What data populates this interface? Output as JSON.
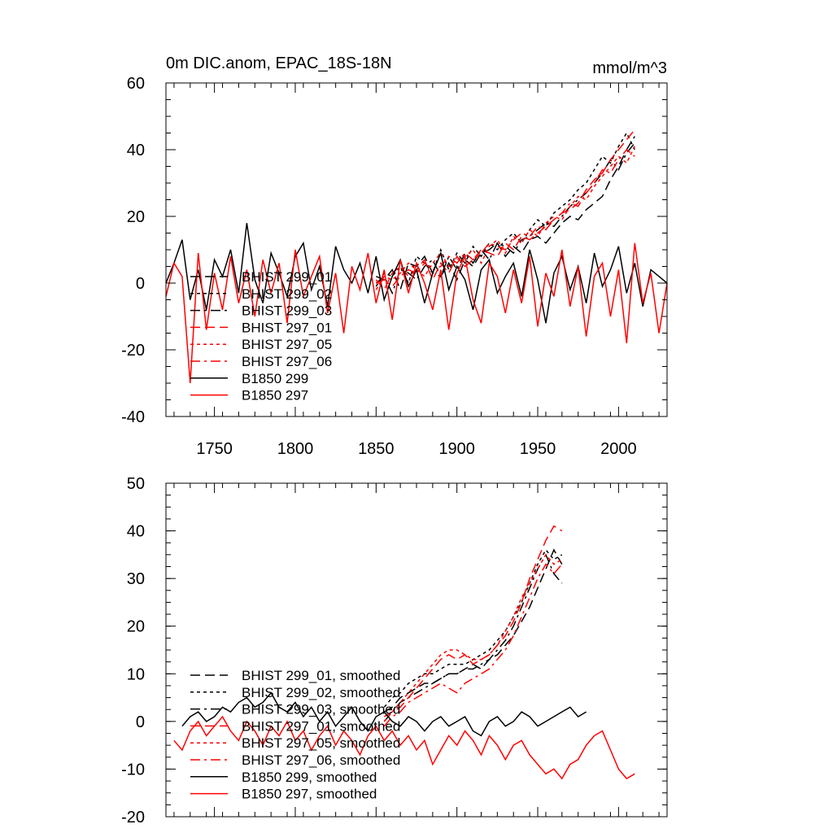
{
  "chart_data": [
    {
      "type": "line",
      "title": "0m DIC.anom, EPAC_18S-18N",
      "units": "mmol/m^3",
      "xlabel": "",
      "ylabel": "",
      "xlim": [
        1720,
        2030
      ],
      "ylim": [
        -40,
        60
      ],
      "x_ticks": [
        1750,
        1800,
        1850,
        1900,
        1950,
        2000
      ],
      "y_ticks": [
        -40,
        -20,
        0,
        20,
        40,
        60
      ],
      "grid": false,
      "legend_position": "lower-left",
      "series": [
        {
          "name": "BHIST 299_01",
          "color": "#000000",
          "dash": "long-dash",
          "x_start": 1850,
          "x_step": 5,
          "values": [
            2,
            1,
            4,
            -2,
            6,
            5,
            8,
            3,
            2,
            6,
            1,
            7,
            5,
            9,
            10,
            12,
            8,
            11,
            9,
            13,
            14,
            12,
            15,
            18,
            20,
            19,
            22,
            24,
            26,
            31,
            35,
            40,
            44
          ]
        },
        {
          "name": "BHIST 299_02",
          "color": "#000000",
          "dash": "short-dash",
          "x_start": 1850,
          "x_step": 5,
          "values": [
            -1,
            3,
            2,
            5,
            0,
            8,
            6,
            3,
            10,
            4,
            9,
            6,
            11,
            8,
            12,
            10,
            13,
            15,
            12,
            16,
            19,
            17,
            21,
            23,
            25,
            28,
            30,
            34,
            38,
            36,
            41,
            45,
            40
          ]
        },
        {
          "name": "BHIST 299_03",
          "color": "#000000",
          "dash": "dash-dot",
          "x_start": 1850,
          "x_step": 5,
          "values": [
            0,
            2,
            -3,
            4,
            3,
            1,
            5,
            7,
            2,
            8,
            4,
            9,
            6,
            10,
            7,
            12,
            11,
            9,
            13,
            14,
            16,
            18,
            17,
            20,
            23,
            25,
            27,
            30,
            33,
            37,
            34,
            39,
            42
          ]
        },
        {
          "name": "BHIST 297_01",
          "color": "#ff0000",
          "dash": "long-dash",
          "x_start": 1850,
          "x_step": 5,
          "values": [
            1,
            -2,
            3,
            5,
            2,
            4,
            7,
            1,
            6,
            3,
            8,
            5,
            7,
            10,
            9,
            8,
            12,
            10,
            14,
            13,
            15,
            17,
            19,
            21,
            22,
            24,
            28,
            31,
            33,
            37,
            40,
            43,
            46
          ]
        },
        {
          "name": "BHIST 297_05",
          "color": "#ff0000",
          "dash": "short-dash",
          "x_start": 1850,
          "x_step": 5,
          "values": [
            -2,
            2,
            1,
            3,
            6,
            4,
            2,
            6,
            9,
            5,
            7,
            8,
            10,
            6,
            11,
            13,
            9,
            14,
            12,
            16,
            14,
            18,
            20,
            19,
            23,
            26,
            25,
            29,
            32,
            35,
            38,
            36,
            41
          ]
        },
        {
          "name": "BHIST 297_06",
          "color": "#ff0000",
          "dash": "dash-dot",
          "x_start": 1850,
          "x_step": 5,
          "values": [
            0,
            1,
            -1,
            2,
            4,
            3,
            6,
            4,
            5,
            8,
            6,
            9,
            7,
            9,
            12,
            11,
            10,
            13,
            15,
            14,
            17,
            16,
            19,
            21,
            24,
            23,
            27,
            30,
            34,
            33,
            37,
            40,
            38
          ]
        },
        {
          "name": "B1850 299",
          "color": "#000000",
          "dash": "solid",
          "x_start": 1720,
          "x_step": 5,
          "values": [
            0,
            6,
            13,
            -5,
            4,
            -8,
            7,
            2,
            10,
            -3,
            18,
            1,
            -6,
            9,
            3,
            -4,
            8,
            12,
            -2,
            5,
            -7,
            11,
            4,
            0,
            6,
            -3,
            8,
            -5,
            2,
            7,
            -1,
            4,
            -6,
            3,
            9,
            -2,
            5,
            1,
            -8,
            4,
            7,
            -3,
            2,
            6,
            -4,
            10,
            1,
            -12,
            3,
            8,
            -2,
            5,
            -6,
            9,
            -1,
            4,
            11,
            -3,
            6,
            -7,
            4,
            2,
            0
          ]
        },
        {
          "name": "B1850 297",
          "color": "#ff0000",
          "dash": "solid",
          "x_start": 1720,
          "x_step": 5,
          "values": [
            -4,
            6,
            2,
            -30,
            9,
            -14,
            3,
            -8,
            8,
            -6,
            4,
            -10,
            7,
            -3,
            6,
            -12,
            10,
            -4,
            2,
            8,
            -9,
            3,
            -15,
            5,
            -2,
            9,
            -6,
            4,
            -11,
            7,
            -3,
            6,
            0,
            -8,
            4,
            -14,
            3,
            8,
            -5,
            -12,
            6,
            2,
            -9,
            4,
            -6,
            8,
            -13,
            3,
            -4,
            10,
            -7,
            5,
            -16,
            2,
            6,
            -10,
            4,
            -18,
            12,
            -6,
            3,
            -15,
            0
          ]
        }
      ]
    },
    {
      "type": "line",
      "title": "",
      "units": "",
      "xlabel": "",
      "ylabel": "",
      "xlim": [
        1720,
        2030
      ],
      "ylim": [
        -20,
        50
      ],
      "x_ticks": [
        1750,
        1800,
        1850,
        1900,
        1950,
        2000
      ],
      "y_ticks": [
        -20,
        -10,
        0,
        10,
        20,
        30,
        40,
        50
      ],
      "grid": false,
      "legend_position": "lower-left",
      "series": [
        {
          "name": "BHIST 299_01, smoothed",
          "color": "#000000",
          "dash": "long-dash",
          "x_start": 1855,
          "x_step": 5,
          "values": [
            2,
            3,
            5,
            6,
            7,
            8,
            8,
            9,
            10,
            10,
            11,
            12,
            11,
            13,
            14,
            16,
            18,
            21,
            24,
            28,
            32,
            36,
            33
          ]
        },
        {
          "name": "BHIST 299_02, smoothed",
          "color": "#000000",
          "dash": "short-dash",
          "x_start": 1855,
          "x_step": 5,
          "values": [
            3,
            5,
            6,
            8,
            9,
            10,
            10,
            11,
            12,
            12,
            12,
            13,
            14,
            15,
            17,
            19,
            22,
            25,
            29,
            33,
            36,
            34,
            35
          ]
        },
        {
          "name": "BHIST 299_03, smoothed",
          "color": "#000000",
          "dash": "dash-dot",
          "x_start": 1855,
          "x_step": 5,
          "values": [
            0,
            2,
            4,
            5,
            6,
            7,
            8,
            9,
            10,
            10,
            11,
            11,
            12,
            13,
            15,
            17,
            20,
            24,
            28,
            32,
            35,
            31,
            29
          ]
        },
        {
          "name": "BHIST 297_01, smoothed",
          "color": "#ff0000",
          "dash": "long-dash",
          "x_start": 1855,
          "x_step": 5,
          "values": [
            1,
            2,
            3,
            5,
            7,
            9,
            11,
            13,
            14,
            13,
            14,
            12,
            13,
            14,
            16,
            18,
            21,
            25,
            30,
            34,
            38,
            41,
            40
          ]
        },
        {
          "name": "BHIST 297_05, smoothed",
          "color": "#ff0000",
          "dash": "short-dash",
          "x_start": 1855,
          "x_step": 5,
          "values": [
            0,
            2,
            4,
            6,
            8,
            10,
            12,
            14,
            15,
            15,
            14,
            13,
            13,
            14,
            16,
            19,
            22,
            26,
            29,
            32,
            35,
            33,
            34
          ]
        },
        {
          "name": "BHIST 297_06, smoothed",
          "color": "#ff0000",
          "dash": "dash-dot",
          "x_start": 1855,
          "x_step": 5,
          "values": [
            -1,
            1,
            2,
            4,
            5,
            6,
            7,
            8,
            7,
            6,
            8,
            9,
            10,
            11,
            13,
            15,
            18,
            22,
            26,
            30,
            33,
            31,
            33
          ]
        },
        {
          "name": "B1850 299, smoothed",
          "color": "#000000",
          "dash": "solid",
          "x_start": 1730,
          "x_step": 5,
          "values": [
            -1,
            1,
            2,
            0,
            1,
            3,
            2,
            4,
            5,
            3,
            4,
            6,
            3,
            2,
            4,
            1,
            3,
            0,
            2,
            -1,
            1,
            3,
            0,
            -2,
            1,
            2,
            0,
            -1,
            1,
            0,
            -2,
            0,
            1,
            -1,
            0,
            1,
            -2,
            -3,
            0,
            1,
            -1,
            0,
            2,
            1,
            -1,
            0,
            1,
            2,
            3,
            1,
            2
          ]
        },
        {
          "name": "B1850 297, smoothed",
          "color": "#ff0000",
          "dash": "solid",
          "x_start": 1725,
          "x_step": 5,
          "values": [
            -4,
            -6,
            -2,
            0,
            -3,
            -1,
            1,
            -2,
            -4,
            0,
            -2,
            -5,
            -1,
            -3,
            0,
            -4,
            -2,
            -6,
            -3,
            -1,
            -5,
            -2,
            -4,
            -7,
            -3,
            -1,
            -4,
            -2,
            -5,
            -3,
            -6,
            -4,
            -9,
            -6,
            -3,
            -5,
            -2,
            -4,
            -7,
            -3,
            -5,
            -8,
            -5,
            -4,
            -7,
            -9,
            -11,
            -10,
            -12,
            -9,
            -8,
            -5,
            -3,
            -2,
            -6,
            -10,
            -12,
            -11
          ]
        }
      ]
    }
  ]
}
